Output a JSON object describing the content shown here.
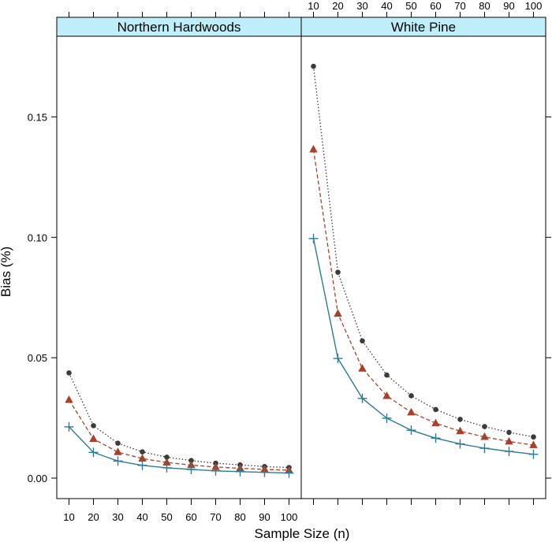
{
  "chart_data": {
    "type": "line",
    "xlabel": "Sample Size (n)",
    "ylabel": "Bias (%)",
    "x": [
      10,
      20,
      30,
      40,
      50,
      60,
      70,
      80,
      90,
      100
    ],
    "xticks": [
      "10",
      "20",
      "30",
      "40",
      "50",
      "60",
      "70",
      "80",
      "90",
      "100"
    ],
    "yticks": [
      "0.00",
      "0.05",
      "0.10",
      "0.15"
    ],
    "ylim": [
      -0.0085,
      0.1835
    ],
    "xlim": [
      5,
      105
    ],
    "grid": false,
    "colors": {
      "strip": "#bfeefb",
      "dotted": "#3b3b3b",
      "dashed": "#a8412a",
      "solid": "#2b7c94"
    },
    "panels": [
      {
        "title": "Northern Hardwoods",
        "series": [
          {
            "style": "dotted",
            "marker": "dot",
            "values": [
              0.0437,
              0.0218,
              0.0145,
              0.0109,
              0.0087,
              0.0073,
              0.0062,
              0.0055,
              0.0048,
              0.0044
            ]
          },
          {
            "style": "dashed",
            "marker": "triangle",
            "values": [
              0.0325,
              0.0163,
              0.0108,
              0.0081,
              0.0065,
              0.0054,
              0.0046,
              0.0041,
              0.0036,
              0.0033
            ]
          },
          {
            "style": "solid",
            "marker": "plus",
            "values": [
              0.0213,
              0.0107,
              0.0071,
              0.0053,
              0.0043,
              0.0036,
              0.003,
              0.0027,
              0.0024,
              0.0021
            ]
          }
        ]
      },
      {
        "title": "White Pine",
        "series": [
          {
            "style": "dotted",
            "marker": "dot",
            "values": [
              0.171,
              0.0855,
              0.057,
              0.0428,
              0.0342,
              0.0285,
              0.0244,
              0.0214,
              0.019,
              0.0171
            ]
          },
          {
            "style": "dashed",
            "marker": "triangle",
            "values": [
              0.1365,
              0.0683,
              0.0455,
              0.0341,
              0.0273,
              0.0228,
              0.0195,
              0.0171,
              0.0152,
              0.0137
            ]
          },
          {
            "style": "solid",
            "marker": "plus",
            "values": [
              0.0995,
              0.0497,
              0.0331,
              0.0249,
              0.0199,
              0.0166,
              0.0142,
              0.0124,
              0.0111,
              0.0099
            ]
          }
        ]
      }
    ]
  }
}
